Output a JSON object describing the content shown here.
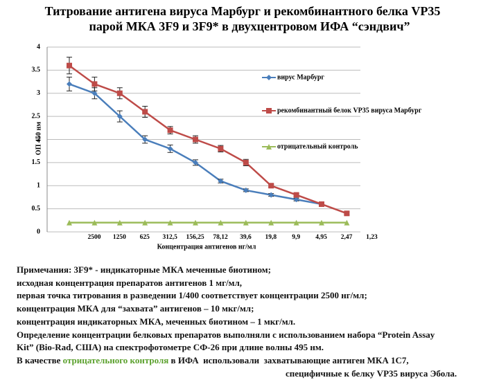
{
  "chart_data": {
    "type": "line",
    "title": [
      "Титрование антигена вируса Марбург и рекомбинантного белка VP35",
      "парой МКА 3F9 и 3F9* в двухцентровом ИФА “сэндвич”"
    ],
    "y_label": "ОП 450 нм",
    "x_label": "Концентрация антигенов нг/мл",
    "categories": [
      "2500",
      "1250",
      "625",
      "312,5",
      "156,25",
      "78,12",
      "39,6",
      "19,8",
      "9,9",
      "4,95",
      "2,47",
      "1,23"
    ],
    "series": [
      {
        "name": "вирус Марбург",
        "color": "#4a7ebb",
        "marker": "diamond",
        "values": [
          3.2,
          3.0,
          2.5,
          2.0,
          1.8,
          1.5,
          1.1,
          0.9,
          0.8,
          0.7,
          0.6,
          null
        ],
        "errors": [
          0.15,
          0.12,
          0.12,
          0.08,
          0.08,
          0.06,
          0.04,
          0.03,
          0.03,
          0.03,
          0.03,
          null
        ]
      },
      {
        "name": "рекомбинантный белок VP35 вируса Марбург",
        "color": "#be4b48",
        "marker": "square",
        "values": [
          3.6,
          3.2,
          3.0,
          2.6,
          2.2,
          2.0,
          1.8,
          1.5,
          1.0,
          0.8,
          0.6,
          0.4
        ],
        "errors": [
          0.18,
          0.15,
          0.12,
          0.12,
          0.08,
          0.08,
          0.07,
          0.07,
          0.03,
          0.03,
          0.03,
          0.03
        ]
      },
      {
        "name": "отрицательный контроль",
        "color": "#9bbb59",
        "marker": "triangle",
        "values": [
          0.2,
          0.2,
          0.2,
          0.2,
          0.2,
          0.2,
          0.2,
          0.2,
          0.2,
          0.2,
          0.2,
          0.2
        ]
      }
    ],
    "ylim": [
      0,
      4
    ],
    "yticks": [
      0,
      0.5,
      1,
      1.5,
      2,
      2.5,
      3,
      3.5,
      4
    ],
    "grid": true,
    "legend": "right"
  },
  "notes": [
    "Примечания: 3F9* - индикаторные МКА меченные биотином;",
    "исходная концентрация препаратов антигенов 1 мг/мл,",
    "первая точка титрования в разведении 1/400 соответствует концентрации 2500 нг/мл;",
    "концентрация МКА для “захвата” антигенов – 10 мкг/мл;",
    "концентрация индикаторных МКА, меченных биотином – 1 мкг/мл.",
    "Определение концентрации белковых препаратов выполняли с использованием набора “Protein Assay",
    "Kit” (Bio-Rad, США) на спектрофотометре СФ-26 при длине волны 495 нм."
  ],
  "notes_last": [
    "В качестве ",
    "отрицательного контроля",
    " в ИФА  использовали  захватывающие антиген МКА 1С7,"
  ],
  "notes_end": "специфичные к белку VP35 вируса Эбола."
}
